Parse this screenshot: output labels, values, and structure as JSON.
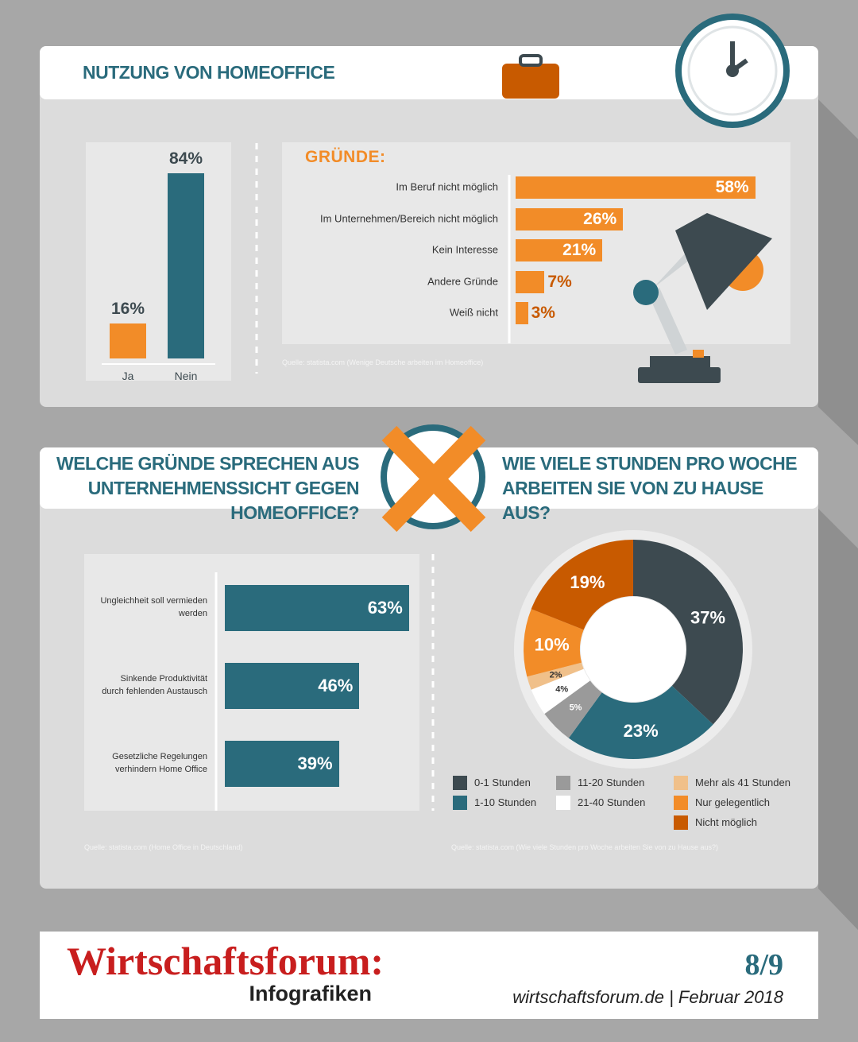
{
  "section_title": "NUTZUNG VON HOMEOFFICE",
  "chart_data": [
    {
      "type": "bar",
      "categories": [
        "Ja",
        "Nein"
      ],
      "values": [
        16,
        84
      ],
      "value_labels": [
        "16%",
        "84%"
      ],
      "colors": [
        "#f28c28",
        "#2a6b7c"
      ]
    },
    {
      "type": "hbar",
      "title": "GRÜNDE:",
      "categories": [
        "Im Beruf nicht möglich",
        "Im Unternehmen/Bereich nicht möglich",
        "Kein Interesse",
        "Andere Gründe",
        "Weiß nicht"
      ],
      "values": [
        58,
        26,
        21,
        7,
        3
      ],
      "value_labels": [
        "58%",
        "26%",
        "21%",
        "7%",
        "3%"
      ],
      "color": "#f28c28",
      "source": "Quelle: statista.com (Wenige Deutsche arbeiten im Homeoffice)"
    },
    {
      "type": "hbar",
      "title": "WELCHE GRÜNDE SPRECHEN AUS UNTERNEHMENSSICHT GEGEN HOMEOFFICE?",
      "categories": [
        "Ungleichheit soll vermieden werden",
        "Sinkende Produktivität durch fehlenden Austausch",
        "Gesetzliche Regelungen verhindern Home Office"
      ],
      "values": [
        63,
        46,
        39
      ],
      "value_labels": [
        "63%",
        "46%",
        "39%"
      ],
      "color": "#2a6b7c",
      "source": "Quelle: statista.com (Home Office in Deutschland)"
    },
    {
      "type": "pie",
      "title": "WIE VIELE STUNDEN PRO WOCHE ARBEITEN SIE VON ZU HAUSE AUS?",
      "categories": [
        "0-1 Stunden",
        "1-10 Stunden",
        "11-20 Stunden",
        "21-40 Stunden",
        "Mehr als 41 Stunden",
        "Nur gelegentlich",
        "Nicht möglich"
      ],
      "values": [
        37,
        23,
        5,
        4,
        2,
        10,
        19
      ],
      "value_labels": [
        "37%",
        "23%",
        "5%",
        "4%",
        "2%",
        "10%",
        "19%"
      ],
      "colors": [
        "#3d4a50",
        "#2a6b7c",
        "#9a9a9a",
        "#ffffff",
        "#f0c08a",
        "#f28c28",
        "#c85a00"
      ],
      "source": "Quelle: statista.com (Wie viele Stunden pro Woche arbeiten Sie von zu Hause aus?)"
    }
  ],
  "footer": {
    "brand": "Wirtschaftsforum:",
    "subtitle": "Infografiken",
    "page": "8/9",
    "credit": "wirtschaftsforum.de | Februar 2018"
  }
}
